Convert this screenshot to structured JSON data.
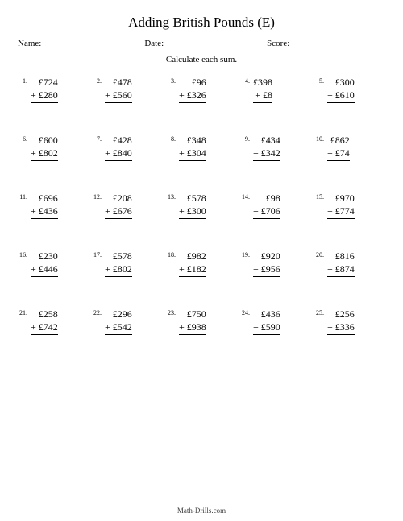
{
  "title": "Adding British Pounds (E)",
  "header": {
    "name_label": "Name:",
    "date_label": "Date:",
    "score_label": "Score:"
  },
  "instruction": "Calculate each sum.",
  "currency": "£",
  "op": "+",
  "footer": "Math-Drills.com",
  "problems": [
    {
      "n": "1.",
      "a": "724",
      "b": "280"
    },
    {
      "n": "2.",
      "a": "478",
      "b": "560"
    },
    {
      "n": "3.",
      "a": "96",
      "b": "326"
    },
    {
      "n": "4.",
      "a": "398",
      "b": "8"
    },
    {
      "n": "5.",
      "a": "300",
      "b": "610"
    },
    {
      "n": "6.",
      "a": "600",
      "b": "802"
    },
    {
      "n": "7.",
      "a": "428",
      "b": "840"
    },
    {
      "n": "8.",
      "a": "348",
      "b": "304"
    },
    {
      "n": "9.",
      "a": "434",
      "b": "342"
    },
    {
      "n": "10.",
      "a": "862",
      "b": "74"
    },
    {
      "n": "11.",
      "a": "696",
      "b": "436"
    },
    {
      "n": "12.",
      "a": "208",
      "b": "676"
    },
    {
      "n": "13.",
      "a": "578",
      "b": "300"
    },
    {
      "n": "14.",
      "a": "98",
      "b": "706"
    },
    {
      "n": "15.",
      "a": "970",
      "b": "774"
    },
    {
      "n": "16.",
      "a": "230",
      "b": "446"
    },
    {
      "n": "17.",
      "a": "578",
      "b": "802"
    },
    {
      "n": "18.",
      "a": "982",
      "b": "182"
    },
    {
      "n": "19.",
      "a": "920",
      "b": "956"
    },
    {
      "n": "20.",
      "a": "816",
      "b": "874"
    },
    {
      "n": "21.",
      "a": "258",
      "b": "742"
    },
    {
      "n": "22.",
      "a": "296",
      "b": "542"
    },
    {
      "n": "23.",
      "a": "750",
      "b": "938"
    },
    {
      "n": "24.",
      "a": "436",
      "b": "590"
    },
    {
      "n": "25.",
      "a": "256",
      "b": "336"
    }
  ]
}
